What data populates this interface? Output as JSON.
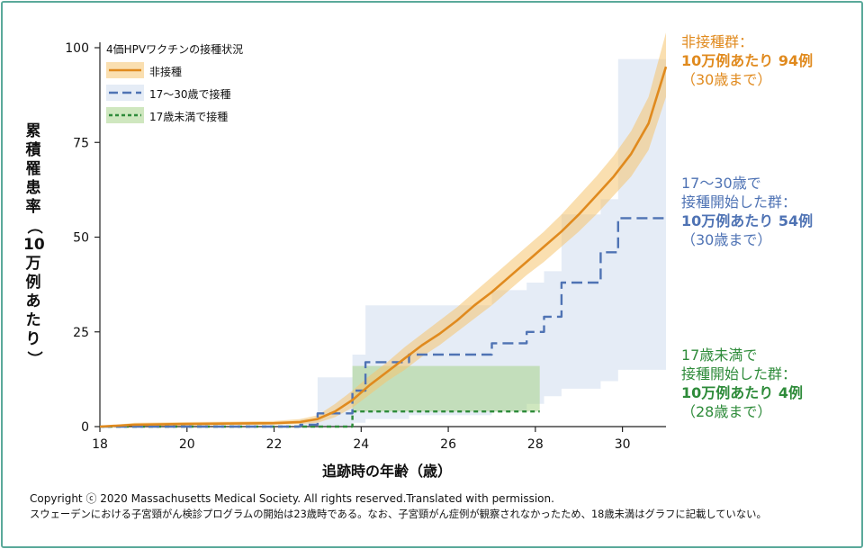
{
  "chart_data": {
    "type": "line",
    "legend_title": "4価HPVワクチンの接種状況",
    "legend_position": "top-left",
    "ylabel": "累積罹患率（10万例あたり）",
    "xlabel": "追跡時の年齢（歳）",
    "xlim": [
      18,
      31
    ],
    "ylim": [
      0,
      100
    ],
    "xticks": [
      "18",
      "20",
      "22",
      "24",
      "26",
      "28",
      "30"
    ],
    "yticks": [
      "0",
      "25",
      "50",
      "75",
      "100"
    ],
    "colors": {
      "unvaccinated": "#e08a1e",
      "vaccinated_17_30": "#4f73b4",
      "vaccinated_under_17": "#2e8b3a"
    },
    "series": [
      {
        "name": "非接種",
        "style": "solid",
        "x": [
          18,
          18.8,
          20,
          21,
          22,
          22.6,
          23,
          23.4,
          23.8,
          24.2,
          24.6,
          25,
          25.4,
          25.8,
          26.2,
          26.6,
          27,
          27.4,
          27.8,
          28.2,
          28.6,
          29,
          29.4,
          29.8,
          30.2,
          30.6,
          31
        ],
        "y": [
          0,
          0.5,
          0.7,
          0.8,
          0.9,
          1.2,
          2,
          4,
          7,
          11,
          14.5,
          18,
          21.5,
          24.5,
          28,
          32,
          35.5,
          39.5,
          43.5,
          47.5,
          51.5,
          56,
          61,
          66,
          72,
          80,
          95
        ],
        "ci_lower": [
          0,
          0.2,
          0.3,
          0.4,
          0.5,
          0.7,
          1,
          2.5,
          5,
          8.5,
          12,
          15,
          18.5,
          21.5,
          25,
          28.5,
          32,
          36,
          40,
          43.5,
          47.5,
          51.5,
          56,
          61,
          66,
          73,
          87
        ],
        "ci_upper": [
          0,
          1,
          1.2,
          1.3,
          1.5,
          2,
          3,
          6,
          9.5,
          13.5,
          17,
          21,
          24.5,
          28,
          31.5,
          35.5,
          39.5,
          43.5,
          47.5,
          51.5,
          56,
          61,
          66,
          71.5,
          78,
          87,
          104
        ]
      },
      {
        "name": "17〜30歳で接種",
        "style": "dashed",
        "x": [
          18,
          22.6,
          23.0,
          23.8,
          24.1,
          25.1,
          26.3,
          27.0,
          27.8,
          28.2,
          28.6,
          29.5,
          29.9,
          31
        ],
        "y": [
          0,
          0.5,
          3.5,
          9.5,
          17,
          19,
          19,
          22,
          25,
          29,
          38,
          46,
          55,
          55
        ],
        "ci_lower": [
          0,
          0,
          0,
          1,
          2,
          3,
          3,
          4,
          6,
          8,
          10,
          12,
          15,
          31
        ],
        "ci_upper": [
          0,
          2,
          13,
          19,
          32,
          32,
          32,
          36,
          38,
          41,
          56,
          60,
          97,
          97
        ]
      },
      {
        "name": "17歳未満で接種",
        "style": "dotted",
        "x": [
          18,
          23.7,
          23.8,
          28.1
        ],
        "y": [
          0,
          0,
          4,
          4
        ],
        "ci_lower": [
          0,
          0,
          4,
          4
        ],
        "ci_upper": [
          0,
          0,
          16,
          16
        ]
      }
    ]
  },
  "annotations": {
    "orange": {
      "l1": "非接種群：",
      "l2": "10万例あたり 94例",
      "l3": "（30歳まで）"
    },
    "blue": {
      "l1": "17〜30歳で",
      "l2": "接種開始した群：",
      "l3": "10万例あたり 54例",
      "l4": "（30歳まで）"
    },
    "green": {
      "l1": "17歳未満で",
      "l2": "接種開始した群：",
      "l3": "10万例あたり 4例",
      "l4": "（28歳まで）"
    }
  },
  "footer": {
    "line1": "Copyright ⓒ 2020 Massachusetts Medical Society. All rights reserved.Translated with permission.",
    "line2": "スウェーデンにおける子宮頸がん検診プログラムの開始は23歳時である。なお、子宮頸がん症例が観察されなかったため、18歳未満はグラフに記載していない。"
  }
}
